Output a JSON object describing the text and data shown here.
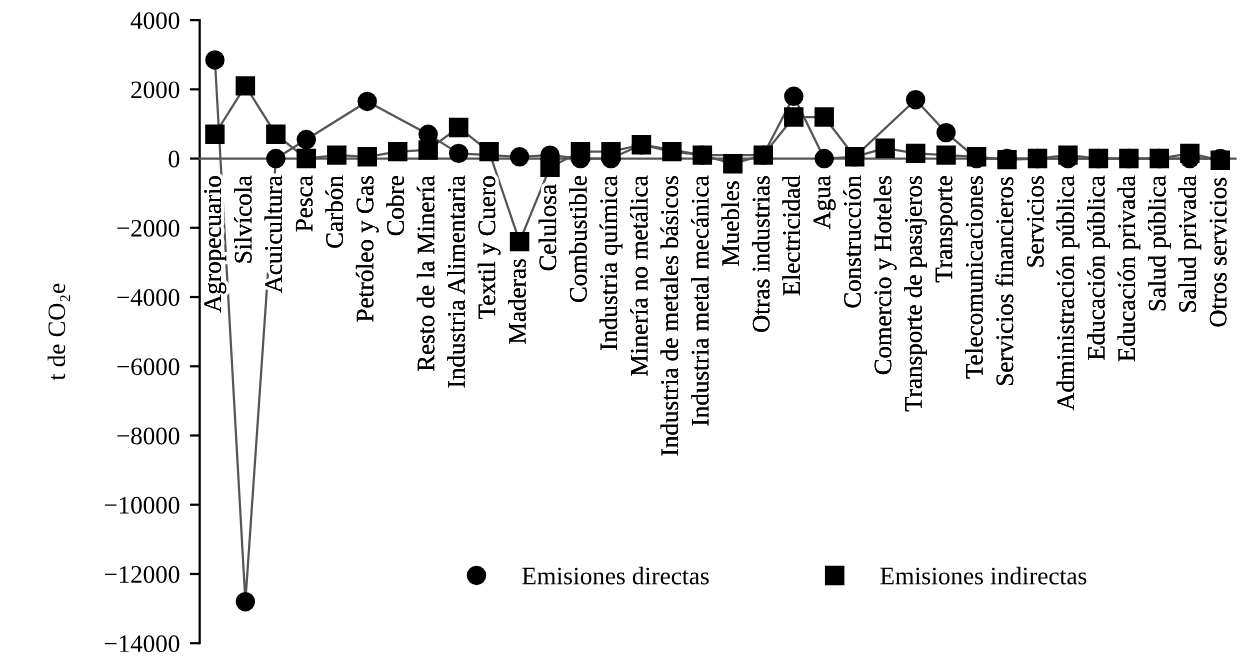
{
  "chart_data": {
    "type": "line",
    "ylabel": "t de CO₂e",
    "categories": [
      "Agropecuario",
      "Silvícola",
      "Acuicultura",
      "Pesca",
      "Carbón",
      "Petróleo y Gas",
      "Cobre",
      "Resto de la Minería",
      "Industria Alimentaria",
      "Textil y Cuero",
      "Maderas",
      "Celulosa",
      "Combustible",
      "Industria química",
      "Minería no metálica",
      "Industria de metales básicos",
      "Industria metal mecánica",
      "Muebles",
      "Otras industrias",
      "Electricidad",
      "Agua",
      "Construcción",
      "Comercio y Hoteles",
      "Transporte de pasajeros",
      "Transporte",
      "Telecomunicaciones",
      "Servicios financieros",
      "Servicios",
      "Administración pública",
      "Educación pública",
      "Educación privada",
      "Salud pública",
      "Salud privada",
      "Otros servicios"
    ],
    "series": [
      {
        "name": "Emisiones directas",
        "color": "#000000",
        "marker": "circle",
        "values": [
          2850,
          -12800,
          0,
          550,
          null,
          1650,
          null,
          700,
          150,
          null,
          50,
          100,
          0,
          0,
          400,
          null,
          100,
          null,
          100,
          1800,
          0,
          50,
          null,
          1700,
          750,
          0,
          0,
          0,
          0,
          0,
          0,
          0,
          0,
          0
        ]
      },
      {
        "name": "Emisiones indirectas",
        "color": "#000000",
        "marker": "square",
        "values": [
          700,
          2100,
          700,
          0,
          100,
          50,
          200,
          250,
          900,
          200,
          -2400,
          -250,
          200,
          200,
          400,
          200,
          100,
          -150,
          100,
          1200,
          1200,
          50,
          300,
          150,
          100,
          50,
          -30,
          0,
          100,
          0,
          0,
          0,
          150,
          -50
        ]
      }
    ],
    "ylim": [
      -14000,
      4000
    ],
    "yticks": [
      -14000,
      -12000,
      -10000,
      -8000,
      -6000,
      -4000,
      -2000,
      0,
      2000,
      4000
    ],
    "grid": false,
    "legend": "bottom"
  }
}
